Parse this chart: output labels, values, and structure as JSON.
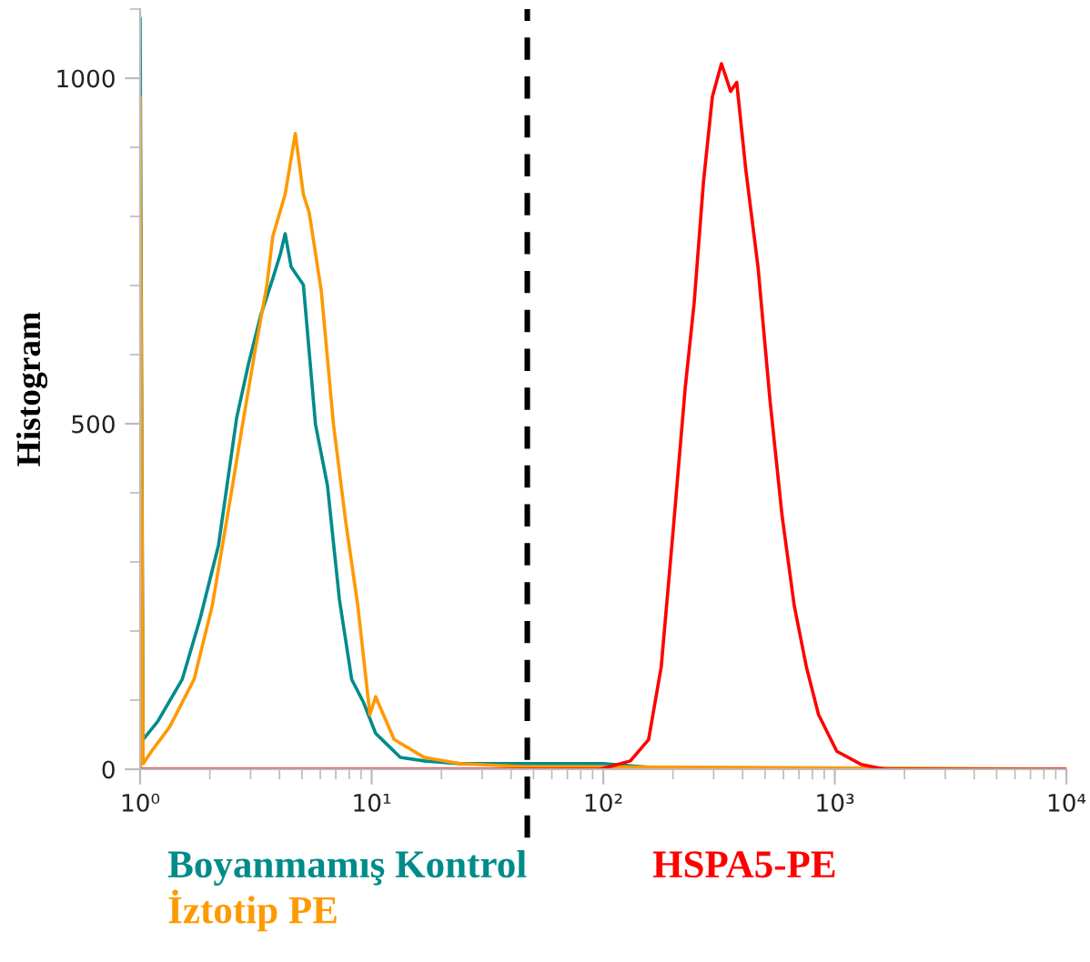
{
  "chart_data": {
    "type": "line",
    "ylabel": "Histogram",
    "log": "x",
    "xlim": [
      1,
      10000
    ],
    "xticks": [
      {
        "value": 1,
        "label": "10⁰"
      },
      {
        "value": 10,
        "label": "10¹"
      },
      {
        "value": 100,
        "label": "10²"
      },
      {
        "value": 1000,
        "label": "10³"
      },
      {
        "value": 10000,
        "label": "10⁴"
      }
    ],
    "ylim": [
      0,
      1100
    ],
    "yticks": [
      0,
      500,
      1000
    ],
    "grid": false,
    "legend": "bottom",
    "marker": "none",
    "line_style": "solid",
    "ref_lines": [
      {
        "axis": "x",
        "value": 47,
        "label": null,
        "color": "#000000",
        "line_style": "dashed"
      }
    ],
    "series": [
      {
        "name": "Boyanmamış Kontrol",
        "color": "#008b8b",
        "x": [
          1.0,
          1.0,
          1.03,
          1.19,
          1.52,
          1.82,
          2.18,
          2.61,
          2.94,
          3.32,
          3.74,
          4.03,
          4.23,
          4.49,
          5.07,
          5.72,
          6.44,
          7.26,
          8.2,
          9.24,
          10.4,
          11.8,
          13.3,
          16.9,
          24.2,
          44.4,
          100,
          200,
          10000
        ],
        "values": [
          0,
          1087,
          43,
          69,
          130,
          219,
          324,
          508,
          587,
          657,
          710,
          745,
          775,
          727,
          701,
          499,
          411,
          245,
          130,
          96,
          52,
          34,
          17,
          12,
          8,
          8,
          8,
          0,
          0
        ]
      },
      {
        "name": "İztotip PE",
        "color": "#ff9900",
        "x": [
          1.0,
          1.0,
          1.03,
          1.12,
          1.34,
          1.71,
          2.05,
          2.46,
          2.77,
          3.13,
          3.53,
          3.74,
          4.23,
          4.68,
          5.07,
          5.37,
          6.06,
          6.84,
          7.72,
          8.71,
          9.83,
          10.4,
          12.5,
          16.9,
          24.2,
          44.4,
          1000,
          10000
        ],
        "values": [
          0,
          973,
          8,
          26,
          61,
          130,
          237,
          394,
          499,
          604,
          701,
          771,
          832,
          920,
          832,
          806,
          692,
          499,
          359,
          237,
          79,
          105,
          43,
          17,
          8,
          4,
          2,
          0
        ]
      },
      {
        "name": "HSPA5-PE",
        "color": "#ff0000",
        "x": [
          1,
          97,
          131,
          157,
          178,
          200,
          226,
          247,
          271,
          296,
          324,
          355,
          377,
          413,
          466,
          525,
          592,
          668,
          754,
          851,
          1020,
          1298,
          1653,
          10000
        ],
        "values": [
          0,
          0,
          12,
          43,
          148,
          342,
          552,
          675,
          850,
          973,
          1021,
          981,
          994,
          867,
          727,
          534,
          367,
          237,
          148,
          79,
          26,
          7,
          0,
          0
        ]
      }
    ]
  }
}
